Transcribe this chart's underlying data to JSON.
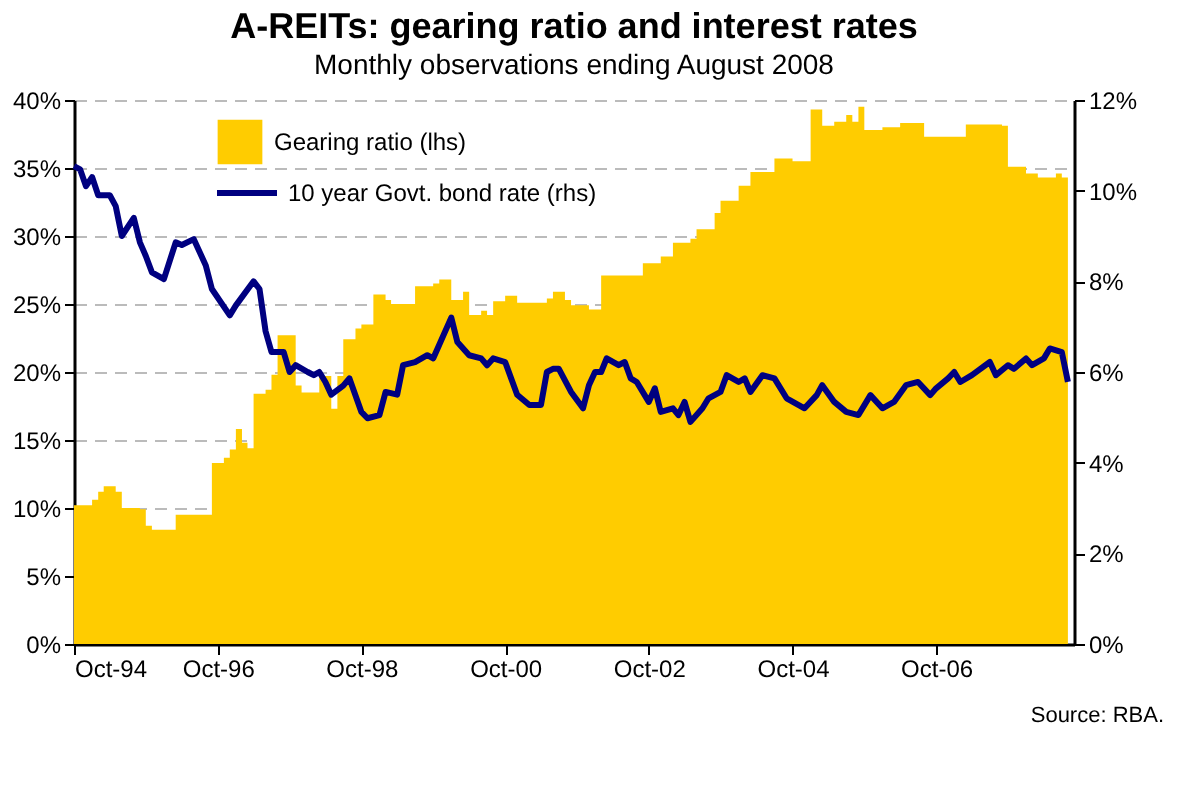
{
  "chart_data": {
    "type": "area",
    "title": "A-REITs: gearing ratio and interest rates",
    "subtitle": "Monthly observations ending August 2008",
    "annotations": [
      "Source: RBA."
    ],
    "legend": "top left",
    "grid": "y",
    "line_style": "solid",
    "marker": "none",
    "xlim": [
      "1994-10",
      "2008-09"
    ],
    "xticks": [
      {
        "value": "1994-10",
        "label": "Oct-94"
      },
      {
        "value": "1996-10",
        "label": "Oct-96"
      },
      {
        "value": "1998-10",
        "label": "Oct-98"
      },
      {
        "value": "2000-10",
        "label": "Oct-00"
      },
      {
        "value": "2002-10",
        "label": "Oct-02"
      },
      {
        "value": "2004-10",
        "label": "Oct-04"
      },
      {
        "value": "2006-10",
        "label": "Oct-06"
      }
    ],
    "ylim": [
      0,
      40
    ],
    "yticks": [
      {
        "value": 0,
        "label": "0%"
      },
      {
        "value": 5,
        "label": "5%"
      },
      {
        "value": 10,
        "label": "10%"
      },
      {
        "value": 15,
        "label": "15%"
      },
      {
        "value": 20,
        "label": "20%"
      },
      {
        "value": 25,
        "label": "25%"
      },
      {
        "value": 30,
        "label": "30%"
      },
      {
        "value": 35,
        "label": "35%"
      },
      {
        "value": 40,
        "label": "40%"
      }
    ],
    "y2lim": [
      0,
      12
    ],
    "y2ticks": [
      {
        "value": 0,
        "label": "0%"
      },
      {
        "value": 2,
        "label": "2%"
      },
      {
        "value": 4,
        "label": "4%"
      },
      {
        "value": 6,
        "label": "6%"
      },
      {
        "value": 8,
        "label": "8%"
      },
      {
        "value": 10,
        "label": "10%"
      },
      {
        "value": 12,
        "label": "12%"
      }
    ],
    "series": [
      {
        "name": "Gearing ratio (lhs)",
        "color": "#ffcc00",
        "x": [
          "1994-10",
          "1995-01",
          "1995-02",
          "1995-03",
          "1995-05",
          "1995-06",
          "1995-09",
          "1995-10",
          "1995-11",
          "1996-03",
          "1996-09",
          "1996-11",
          "1996-12",
          "1997-01",
          "1997-02",
          "1997-03",
          "1997-04",
          "1997-06",
          "1997-07",
          "1997-08",
          "1997-11",
          "1997-12",
          "1998-03",
          "1998-05",
          "1998-06",
          "1998-07",
          "1998-09",
          "1998-10",
          "1998-12",
          "1999-02",
          "1999-03",
          "1999-07",
          "1999-10",
          "1999-11",
          "2000-01",
          "2000-03",
          "2000-04",
          "2000-06",
          "2000-07",
          "2000-08",
          "2000-10",
          "2000-12",
          "2001-05",
          "2001-06",
          "2001-08",
          "2001-09",
          "2001-12",
          "2002-02",
          "2002-09",
          "2002-12",
          "2003-02",
          "2003-05",
          "2003-06",
          "2003-09",
          "2003-10",
          "2004-01",
          "2004-03",
          "2004-07",
          "2004-10",
          "2005-01",
          "2005-03",
          "2005-05",
          "2005-07",
          "2005-08",
          "2005-09",
          "2005-10",
          "2006-01",
          "2006-04",
          "2006-08",
          "2007-03",
          "2007-09",
          "2007-10",
          "2008-01",
          "2008-03",
          "2008-06",
          "2008-07",
          "2008-08"
        ],
        "values": [
          10.2,
          10.6,
          11.2,
          11.6,
          11.2,
          10.0,
          9.9,
          8.7,
          8.4,
          9.5,
          13.3,
          13.7,
          14.3,
          15.8,
          14.8,
          14.4,
          18.4,
          18.7,
          19.8,
          22.7,
          19.0,
          18.5,
          19.7,
          17.3,
          19.7,
          22.4,
          23.2,
          23.5,
          25.7,
          25.3,
          25.0,
          26.3,
          26.5,
          26.8,
          25.3,
          25.9,
          24.2,
          24.5,
          24.2,
          25.2,
          25.6,
          25.1,
          25.4,
          25.9,
          25.3,
          24.9,
          24.6,
          27.1,
          28.0,
          28.5,
          29.5,
          29.8,
          30.5,
          31.7,
          32.6,
          33.7,
          34.7,
          35.7,
          35.5,
          39.3,
          38.1,
          38.4,
          38.9,
          38.4,
          39.5,
          37.8,
          38.0,
          38.3,
          37.3,
          38.2,
          38.1,
          35.1,
          34.6,
          34.3,
          34.6,
          34.3,
          34.5
        ]
      },
      {
        "name": "10 year Govt. bond rate (rhs)",
        "type": "line",
        "axis": "y2",
        "color": "#000080",
        "x": [
          "1994-10",
          "1994-11",
          "1994-12",
          "1995-01",
          "1995-02",
          "1995-04",
          "1995-05",
          "1995-06",
          "1995-08",
          "1995-09",
          "1995-10",
          "1995-11",
          "1996-01",
          "1996-03",
          "1996-04",
          "1996-06",
          "1996-08",
          "1996-09",
          "1996-12",
          "1997-01",
          "1997-04",
          "1997-05",
          "1997-06",
          "1997-07",
          "1997-09",
          "1997-10",
          "1997-11",
          "1998-01",
          "1998-02",
          "1998-03",
          "1998-04",
          "1998-05",
          "1998-07",
          "1998-08",
          "1998-10",
          "1998-11",
          "1999-01",
          "1999-02",
          "1999-04",
          "1999-05",
          "1999-07",
          "1999-09",
          "1999-10",
          "1999-11",
          "2000-01",
          "2000-02",
          "2000-04",
          "2000-06",
          "2000-07",
          "2000-08",
          "2000-10",
          "2000-12",
          "2001-02",
          "2001-04",
          "2001-05",
          "2001-06",
          "2001-07",
          "2001-09",
          "2001-11",
          "2001-12",
          "2002-01",
          "2002-02",
          "2002-03",
          "2002-05",
          "2002-06",
          "2002-07",
          "2002-08",
          "2002-10",
          "2002-11",
          "2002-12",
          "2003-02",
          "2003-03",
          "2003-04",
          "2003-05",
          "2003-07",
          "2003-08",
          "2003-10",
          "2003-11",
          "2004-01",
          "2004-02",
          "2004-03",
          "2004-05",
          "2004-07",
          "2004-09",
          "2004-12",
          "2005-02",
          "2005-03",
          "2005-05",
          "2005-07",
          "2005-09",
          "2005-11",
          "2006-01",
          "2006-03",
          "2006-05",
          "2006-07",
          "2006-09",
          "2006-10",
          "2006-12",
          "2007-01",
          "2007-02",
          "2007-04",
          "2007-07",
          "2007-08",
          "2007-10",
          "2007-11",
          "2008-01",
          "2008-02",
          "2008-04",
          "2008-05",
          "2008-07",
          "2008-08"
        ],
        "values": [
          10.54,
          10.47,
          10.1,
          10.3,
          9.9,
          9.9,
          9.66,
          9.0,
          9.4,
          8.86,
          8.56,
          8.2,
          8.05,
          8.86,
          8.8,
          8.93,
          8.35,
          7.83,
          7.25,
          7.47,
          8.0,
          7.83,
          6.9,
          6.44,
          6.44,
          6.0,
          6.15,
          6.0,
          5.93,
          6.0,
          5.78,
          5.5,
          5.7,
          5.86,
          5.12,
          4.98,
          5.05,
          5.56,
          5.5,
          6.15,
          6.22,
          6.37,
          6.3,
          6.6,
          7.2,
          6.66,
          6.37,
          6.3,
          6.15,
          6.3,
          6.22,
          5.5,
          5.27,
          5.27,
          6.0,
          6.07,
          6.07,
          5.56,
          5.2,
          5.71,
          6.0,
          6.0,
          6.3,
          6.15,
          6.22,
          5.86,
          5.78,
          5.34,
          5.64,
          5.12,
          5.2,
          5.05,
          5.34,
          4.9,
          5.2,
          5.42,
          5.56,
          5.93,
          5.78,
          5.86,
          5.56,
          5.93,
          5.86,
          5.42,
          5.2,
          5.49,
          5.71,
          5.34,
          5.12,
          5.05,
          5.49,
          5.2,
          5.34,
          5.71,
          5.78,
          5.49,
          5.64,
          5.86,
          6.0,
          5.78,
          5.93,
          6.22,
          5.93,
          6.15,
          6.07,
          6.3,
          6.15,
          6.3,
          6.52,
          6.44,
          5.78
        ]
      }
    ]
  }
}
